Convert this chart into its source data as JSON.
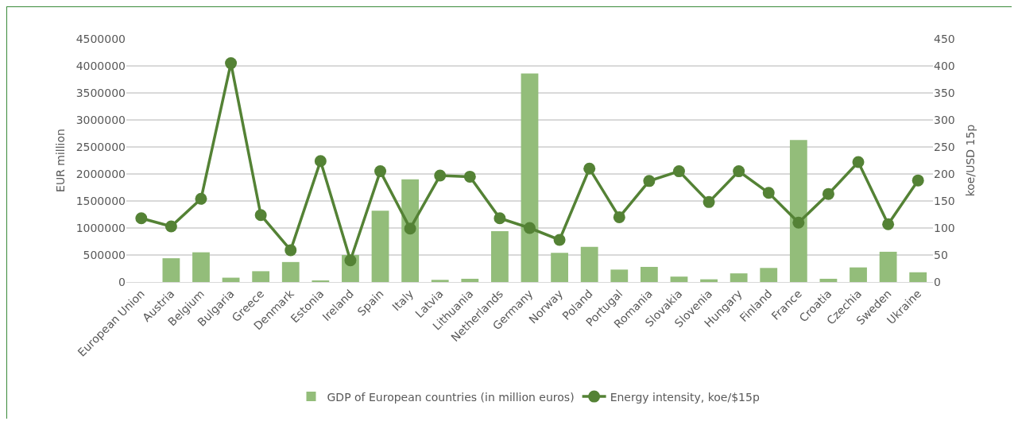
{
  "chart_data": {
    "type": "bar",
    "ylabel": "EUR million",
    "y2label": "koe/USD 15p",
    "categories": [
      "European Union",
      "Austria",
      "Belgium",
      "Bulgaria",
      "Greece",
      "Denmark",
      "Estonia",
      "Ireland",
      "Spain",
      "Italy",
      "Latvia",
      "Lithuania",
      "Netherlands",
      "Germany",
      "Norway",
      "Poland",
      "Portugal",
      "Romania",
      "Slovakia",
      "Slovenia",
      "Hungary",
      "Finland",
      "France",
      "Croatia",
      "Czechia",
      "Sweden",
      "Ukraine"
    ],
    "series": [
      {
        "name": "GDP of European countries (in million euros)",
        "color": "#93bd7a",
        "values": [
          null,
          440000,
          550000,
          80000,
          200000,
          370000,
          30000,
          500000,
          1320000,
          1900000,
          40000,
          60000,
          940000,
          3860000,
          540000,
          650000,
          230000,
          280000,
          100000,
          50000,
          160000,
          260000,
          2630000,
          60000,
          270000,
          560000,
          180000
        ]
      },
      {
        "name": "Energy intensity, koe/$15p",
        "type": "line",
        "axis": "y2",
        "color": "#548235",
        "values": [
          118,
          103,
          154,
          405,
          124,
          59,
          224,
          40,
          205,
          99,
          197,
          195,
          118,
          100,
          78,
          210,
          120,
          187,
          205,
          148,
          205,
          165,
          110,
          163,
          222,
          107,
          188
        ]
      }
    ],
    "ylim": [
      0,
      4500000
    ],
    "yticks": [
      0,
      500000,
      1000000,
      1500000,
      2000000,
      2500000,
      3000000,
      3500000,
      4000000,
      4500000
    ],
    "y2lim": [
      0,
      450
    ],
    "y2ticks": [
      0,
      50,
      100,
      150,
      200,
      250,
      300,
      350,
      400,
      450
    ],
    "grid": "y",
    "legend": "bottom",
    "marker": "circle",
    "line_style": "solid"
  }
}
